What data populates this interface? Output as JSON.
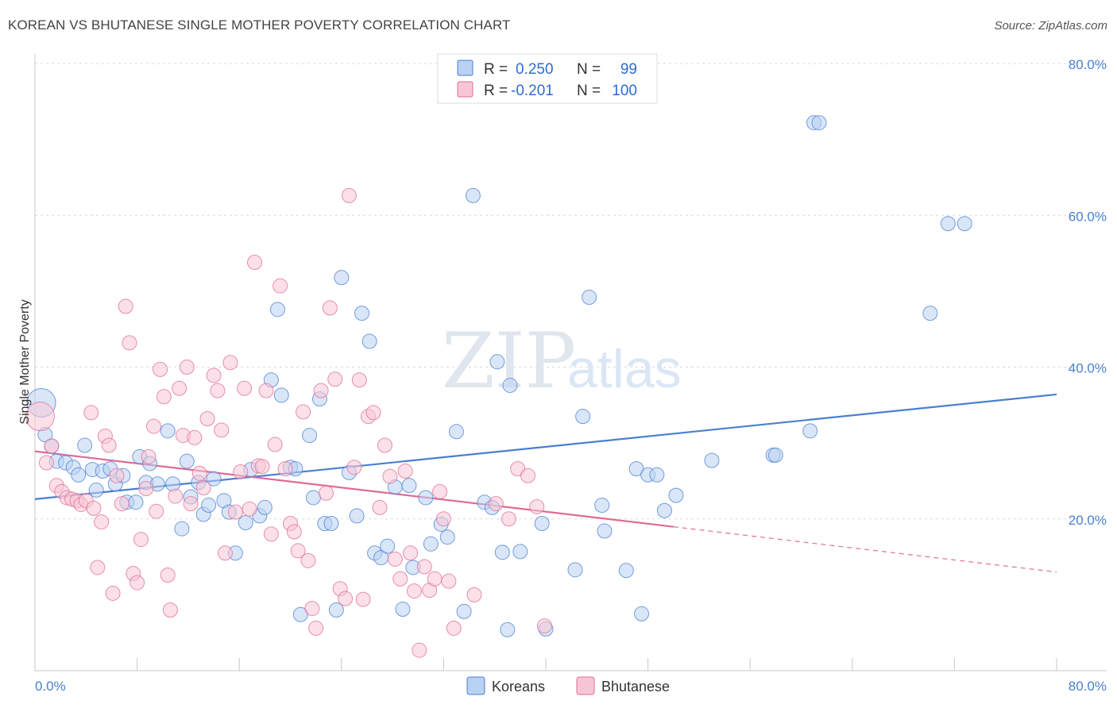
{
  "header": {
    "title": "KOREAN VS BHUTANESE SINGLE MOTHER POVERTY CORRELATION CHART",
    "source": "Source: ZipAtlas.com"
  },
  "watermark": {
    "zip": "ZIP",
    "atlas": "atlas"
  },
  "legend": {
    "rows": [
      {
        "r_label": "R =",
        "r_value": "0.250",
        "n_label": "N =",
        "n_value": "99",
        "color": "#a9c6ef"
      },
      {
        "r_label": "R =",
        "r_value": "-0.201",
        "n_label": "N =",
        "n_value": "100",
        "color": "#f5b8cb"
      }
    ]
  },
  "chart_data": {
    "type": "scatter",
    "ylabel": "Single Mother Poverty",
    "xlim": [
      0,
      80
    ],
    "ylim": [
      0,
      80
    ],
    "x_tick_labels": [
      "0.0%",
      "80.0%"
    ],
    "y_ticks": [
      20,
      40,
      60,
      80
    ],
    "y_tick_labels": [
      "20.0%",
      "40.0%",
      "60.0%",
      "80.0%"
    ],
    "grid": "horizontal dashed",
    "legend_placement": "top-center",
    "series": [
      {
        "name": "Koreans",
        "color": "#4a7fd0",
        "fill": "#b9d1f3",
        "trend": {
          "x": [
            0,
            80
          ],
          "y": [
            22.6,
            36.4
          ],
          "dashed_from": null
        },
        "points": [
          [
            0.5,
            35.3
          ],
          [
            0.8,
            31.1
          ],
          [
            1.3,
            29.6
          ],
          [
            1.7,
            27.6
          ],
          [
            2.4,
            27.4
          ],
          [
            3.0,
            26.8
          ],
          [
            3.4,
            25.8
          ],
          [
            3.9,
            29.7
          ],
          [
            4.5,
            26.5
          ],
          [
            4.8,
            23.8
          ],
          [
            5.3,
            26.3
          ],
          [
            5.9,
            26.6
          ],
          [
            6.3,
            24.6
          ],
          [
            6.9,
            25.7
          ],
          [
            7.2,
            22.2
          ],
          [
            7.9,
            22.2
          ],
          [
            8.2,
            28.2
          ],
          [
            8.7,
            24.8
          ],
          [
            9.0,
            27.3
          ],
          [
            9.6,
            24.6
          ],
          [
            10.4,
            31.6
          ],
          [
            10.8,
            24.6
          ],
          [
            11.5,
            18.7
          ],
          [
            11.9,
            27.6
          ],
          [
            12.2,
            22.9
          ],
          [
            12.8,
            24.8
          ],
          [
            13.2,
            20.6
          ],
          [
            13.6,
            21.8
          ],
          [
            14.0,
            25.3
          ],
          [
            14.8,
            22.4
          ],
          [
            15.2,
            20.9
          ],
          [
            15.7,
            15.5
          ],
          [
            16.5,
            19.5
          ],
          [
            16.9,
            26.5
          ],
          [
            17.6,
            20.4
          ],
          [
            18.0,
            21.5
          ],
          [
            18.5,
            38.3
          ],
          [
            19.0,
            47.6
          ],
          [
            19.3,
            36.3
          ],
          [
            20.0,
            26.8
          ],
          [
            20.4,
            26.6
          ],
          [
            20.8,
            7.4
          ],
          [
            21.5,
            31.0
          ],
          [
            21.8,
            22.8
          ],
          [
            22.3,
            35.8
          ],
          [
            22.7,
            19.4
          ],
          [
            23.2,
            19.4
          ],
          [
            23.6,
            8.0
          ],
          [
            24.0,
            51.8
          ],
          [
            24.6,
            26.1
          ],
          [
            25.2,
            20.4
          ],
          [
            25.6,
            47.1
          ],
          [
            26.2,
            43.4
          ],
          [
            26.6,
            15.5
          ],
          [
            27.1,
            14.9
          ],
          [
            27.6,
            16.4
          ],
          [
            28.2,
            24.2
          ],
          [
            28.8,
            8.1
          ],
          [
            29.3,
            24.4
          ],
          [
            29.6,
            13.6
          ],
          [
            30.6,
            22.8
          ],
          [
            31.0,
            16.7
          ],
          [
            31.8,
            19.3
          ],
          [
            32.3,
            17.6
          ],
          [
            33.0,
            31.5
          ],
          [
            33.6,
            7.8
          ],
          [
            34.3,
            62.6
          ],
          [
            35.2,
            22.2
          ],
          [
            35.8,
            21.5
          ],
          [
            36.2,
            40.7
          ],
          [
            36.6,
            15.6
          ],
          [
            37.0,
            5.4
          ],
          [
            37.2,
            37.6
          ],
          [
            38.0,
            15.7
          ],
          [
            38.9,
            76.1
          ],
          [
            39.7,
            19.4
          ],
          [
            40.0,
            5.5
          ],
          [
            42.3,
            13.3
          ],
          [
            42.9,
            33.5
          ],
          [
            43.4,
            49.2
          ],
          [
            44.4,
            21.8
          ],
          [
            44.6,
            18.4
          ],
          [
            46.3,
            13.2
          ],
          [
            47.1,
            26.6
          ],
          [
            47.5,
            7.5
          ],
          [
            48.0,
            25.8
          ],
          [
            48.7,
            25.8
          ],
          [
            49.3,
            21.1
          ],
          [
            50.2,
            23.1
          ],
          [
            53.0,
            27.7
          ],
          [
            57.8,
            28.4
          ],
          [
            58.0,
            28.4
          ],
          [
            60.7,
            31.6
          ],
          [
            61.0,
            72.2
          ],
          [
            61.4,
            72.2
          ],
          [
            70.1,
            47.1
          ],
          [
            71.5,
            58.9
          ],
          [
            72.8,
            58.9
          ]
        ]
      },
      {
        "name": "Bhutanese",
        "color": "#e06b96",
        "fill": "#f7c6d6",
        "trend": {
          "x": [
            0,
            80
          ],
          "y": [
            28.9,
            13.0
          ],
          "dashed_from": 50
        },
        "points": [
          [
            0.4,
            33.5
          ],
          [
            0.9,
            27.4
          ],
          [
            1.3,
            29.6
          ],
          [
            1.7,
            24.4
          ],
          [
            2.1,
            23.6
          ],
          [
            2.5,
            22.8
          ],
          [
            2.9,
            22.6
          ],
          [
            3.3,
            22.4
          ],
          [
            3.6,
            21.9
          ],
          [
            4.0,
            22.4
          ],
          [
            4.4,
            34.0
          ],
          [
            4.6,
            21.4
          ],
          [
            4.9,
            13.6
          ],
          [
            5.2,
            19.6
          ],
          [
            5.5,
            30.9
          ],
          [
            5.8,
            29.7
          ],
          [
            6.1,
            10.2
          ],
          [
            6.4,
            25.7
          ],
          [
            6.8,
            22.0
          ],
          [
            7.1,
            48.0
          ],
          [
            7.4,
            43.2
          ],
          [
            7.7,
            12.8
          ],
          [
            8.0,
            11.6
          ],
          [
            8.3,
            17.3
          ],
          [
            8.7,
            24.0
          ],
          [
            8.9,
            28.2
          ],
          [
            9.3,
            32.2
          ],
          [
            9.5,
            21.0
          ],
          [
            9.8,
            39.7
          ],
          [
            10.1,
            36.1
          ],
          [
            10.4,
            12.6
          ],
          [
            10.6,
            8.0
          ],
          [
            11.0,
            23.0
          ],
          [
            11.3,
            37.2
          ],
          [
            11.6,
            31.0
          ],
          [
            11.9,
            40.0
          ],
          [
            12.2,
            22.0
          ],
          [
            12.5,
            30.7
          ],
          [
            12.9,
            26.0
          ],
          [
            13.2,
            24.1
          ],
          [
            13.5,
            33.2
          ],
          [
            14.0,
            38.9
          ],
          [
            14.3,
            36.9
          ],
          [
            14.6,
            31.7
          ],
          [
            14.9,
            15.5
          ],
          [
            15.3,
            40.6
          ],
          [
            15.7,
            20.9
          ],
          [
            16.1,
            26.2
          ],
          [
            16.4,
            37.2
          ],
          [
            16.8,
            21.3
          ],
          [
            17.2,
            53.8
          ],
          [
            17.5,
            27.0
          ],
          [
            17.8,
            26.9
          ],
          [
            18.1,
            36.9
          ],
          [
            18.5,
            18.0
          ],
          [
            18.8,
            29.8
          ],
          [
            19.2,
            50.7
          ],
          [
            19.6,
            26.6
          ],
          [
            20.0,
            19.4
          ],
          [
            20.3,
            18.3
          ],
          [
            20.6,
            15.8
          ],
          [
            21.0,
            34.1
          ],
          [
            21.4,
            14.5
          ],
          [
            21.7,
            8.2
          ],
          [
            22.0,
            5.6
          ],
          [
            22.4,
            36.9
          ],
          [
            22.8,
            23.4
          ],
          [
            23.1,
            47.8
          ],
          [
            23.5,
            38.4
          ],
          [
            23.9,
            10.8
          ],
          [
            24.3,
            9.5
          ],
          [
            24.6,
            62.6
          ],
          [
            25.0,
            26.8
          ],
          [
            25.4,
            38.3
          ],
          [
            25.7,
            9.4
          ],
          [
            26.1,
            33.5
          ],
          [
            26.5,
            34.0
          ],
          [
            27.0,
            21.5
          ],
          [
            27.4,
            29.7
          ],
          [
            27.8,
            25.6
          ],
          [
            28.2,
            14.7
          ],
          [
            28.6,
            12.1
          ],
          [
            29.0,
            26.3
          ],
          [
            29.4,
            15.5
          ],
          [
            29.7,
            10.5
          ],
          [
            30.1,
            2.7
          ],
          [
            30.5,
            13.7
          ],
          [
            30.9,
            10.6
          ],
          [
            31.3,
            12.1
          ],
          [
            31.7,
            23.6
          ],
          [
            32.0,
            20.0
          ],
          [
            32.4,
            11.8
          ],
          [
            32.8,
            5.6
          ],
          [
            34.4,
            10.0
          ],
          [
            36.1,
            22.0
          ],
          [
            37.1,
            20.0
          ],
          [
            37.8,
            26.6
          ],
          [
            38.6,
            25.7
          ],
          [
            39.3,
            21.6
          ],
          [
            39.9,
            5.9
          ]
        ]
      }
    ]
  },
  "bottom_legend": [
    {
      "label": "Koreans"
    },
    {
      "label": "Bhutanese"
    }
  ]
}
